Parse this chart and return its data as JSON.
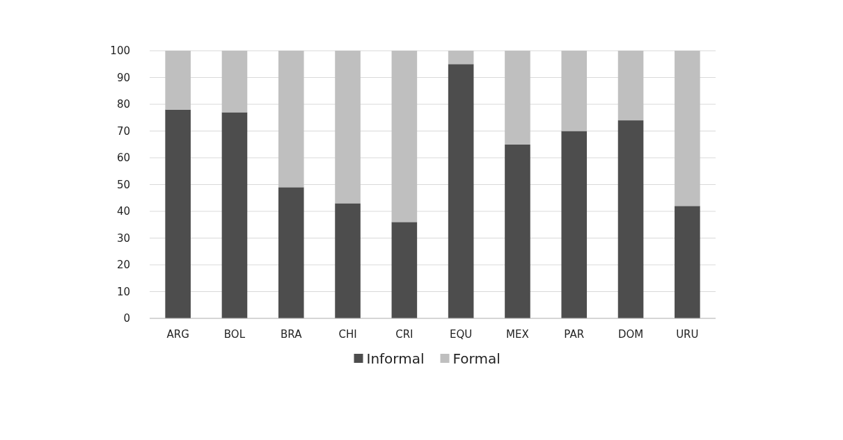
{
  "chart_data": {
    "type": "bar",
    "stacked": true,
    "categories": [
      "ARG",
      "BOL",
      "BRA",
      "CHI",
      "CRI",
      "EQU",
      "MEX",
      "PAR",
      "DOM",
      "URU"
    ],
    "series": [
      {
        "name": "Informal",
        "color": "#4d4d4d",
        "values": [
          78,
          77,
          49,
          43,
          36,
          95,
          65,
          70,
          74,
          42
        ]
      },
      {
        "name": "Formal",
        "color": "#bfbfbf",
        "values": [
          22,
          23,
          51,
          57,
          64,
          5,
          35,
          30,
          26,
          58
        ]
      }
    ],
    "ylim": [
      0,
      100
    ],
    "yticks": [
      0,
      10,
      20,
      30,
      40,
      50,
      60,
      70,
      80,
      90,
      100
    ],
    "grid": "y",
    "legend": "bottom"
  }
}
